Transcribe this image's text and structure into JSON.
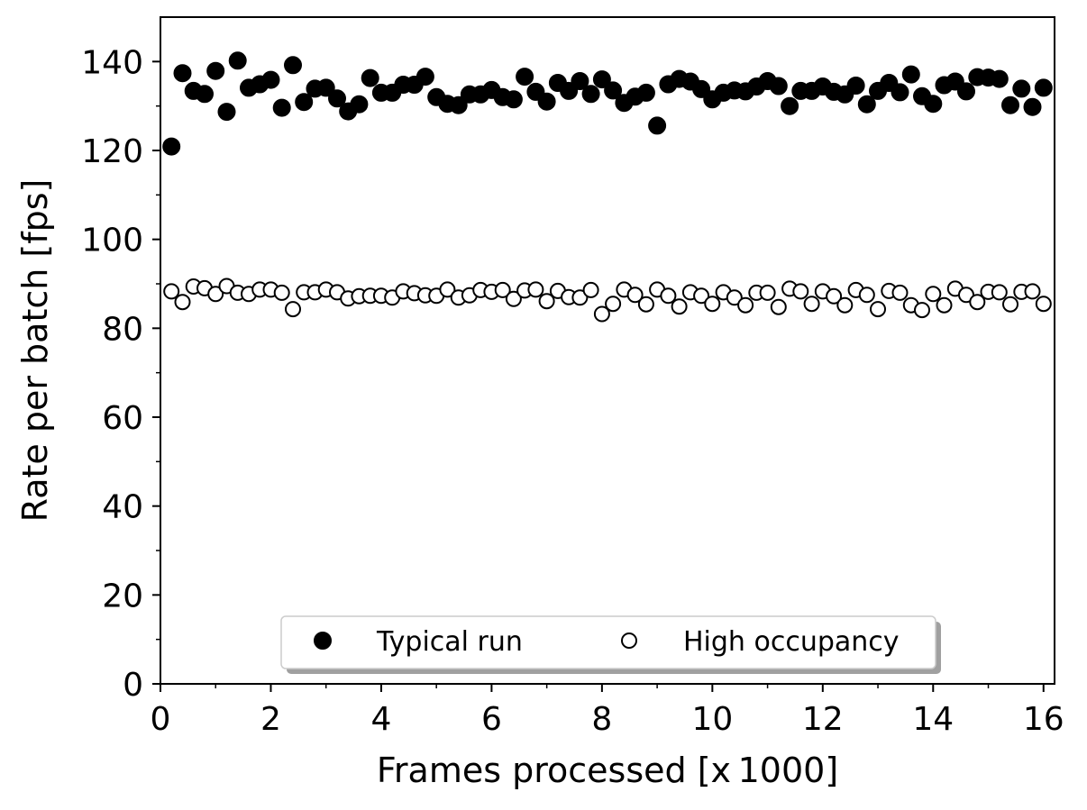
{
  "chart_data": {
    "type": "scatter",
    "title": "",
    "xlabel": "Frames processed [x 1000]",
    "ylabel": "Rate per batch [fps]",
    "xlim": [
      0,
      16.2
    ],
    "ylim": [
      0,
      150
    ],
    "x_ticks": [
      "0",
      "2",
      "4",
      "6",
      "8",
      "10",
      "12",
      "14",
      "16"
    ],
    "y_ticks": [
      "0",
      "20",
      "40",
      "60",
      "80",
      "100",
      "120",
      "140"
    ],
    "grid": false,
    "legend": {
      "placement": "lower-center",
      "columns": 2
    },
    "series": [
      {
        "name": "Typical run",
        "marker": "filled-circle",
        "color": "#000000",
        "x": [
          0.2,
          0.4,
          0.6,
          0.8,
          1.0,
          1.2,
          1.4,
          1.6,
          1.8,
          2.0,
          2.2,
          2.4,
          2.6,
          2.8,
          3.0,
          3.2,
          3.4,
          3.6,
          3.8,
          4.0,
          4.2,
          4.4,
          4.6,
          4.8,
          5.0,
          5.2,
          5.4,
          5.6,
          5.8,
          6.0,
          6.2,
          6.4,
          6.6,
          6.8,
          7.0,
          7.2,
          7.4,
          7.6,
          7.8,
          8.0,
          8.2,
          8.4,
          8.6,
          8.8,
          9.0,
          9.2,
          9.4,
          9.6,
          9.8,
          10.0,
          10.2,
          10.4,
          10.6,
          10.8,
          11.0,
          11.2,
          11.4,
          11.6,
          11.8,
          12.0,
          12.2,
          12.4,
          12.6,
          12.8,
          13.0,
          13.2,
          13.4,
          13.6,
          13.8,
          14.0,
          14.2,
          14.4,
          14.6,
          14.8,
          15.0,
          15.2,
          15.4,
          15.6,
          15.8,
          16.0
        ],
        "y": [
          120.9,
          137.4,
          133.4,
          132.7,
          137.9,
          128.7,
          140.2,
          134.1,
          134.9,
          135.9,
          129.6,
          139.2,
          130.9,
          133.9,
          134.1,
          131.7,
          128.8,
          130.4,
          136.3,
          133.0,
          133.0,
          134.8,
          134.8,
          136.6,
          132.0,
          130.5,
          130.2,
          132.6,
          132.6,
          133.6,
          132.0,
          131.5,
          136.6,
          133.2,
          131.0,
          135.2,
          133.4,
          135.6,
          132.7,
          136.0,
          133.5,
          130.7,
          132.1,
          133.0,
          125.6,
          134.9,
          136.1,
          135.5,
          133.8,
          131.5,
          133.0,
          133.5,
          133.3,
          134.4,
          135.6,
          134.5,
          130.0,
          133.4,
          133.4,
          134.4,
          133.2,
          132.6,
          134.6,
          130.4,
          133.4,
          135.2,
          133.1,
          137.1,
          132.2,
          130.5,
          134.7,
          135.5,
          133.3,
          136.5,
          136.4,
          136.1,
          130.2,
          133.9,
          129.8,
          134.1
        ]
      },
      {
        "name": "High occupancy",
        "marker": "open-circle",
        "color": "#000000",
        "x": [
          0.2,
          0.4,
          0.6,
          0.8,
          1.0,
          1.2,
          1.4,
          1.6,
          1.8,
          2.0,
          2.2,
          2.4,
          2.6,
          2.8,
          3.0,
          3.2,
          3.4,
          3.6,
          3.8,
          4.0,
          4.2,
          4.4,
          4.6,
          4.8,
          5.0,
          5.2,
          5.4,
          5.6,
          5.8,
          6.0,
          6.2,
          6.4,
          6.6,
          6.8,
          7.0,
          7.2,
          7.4,
          7.6,
          7.8,
          8.0,
          8.2,
          8.4,
          8.6,
          8.8,
          9.0,
          9.2,
          9.4,
          9.6,
          9.8,
          10.0,
          10.2,
          10.4,
          10.6,
          10.8,
          11.0,
          11.2,
          11.4,
          11.6,
          11.8,
          12.0,
          12.2,
          12.4,
          12.6,
          12.8,
          13.0,
          13.2,
          13.4,
          13.6,
          13.8,
          14.0,
          14.2,
          14.4,
          14.6,
          14.8,
          15.0,
          15.2,
          15.4,
          15.6,
          15.8,
          16.0
        ],
        "y": [
          88.3,
          85.9,
          89.4,
          89.0,
          87.7,
          89.5,
          88.0,
          87.7,
          88.7,
          88.7,
          88.0,
          84.3,
          88.1,
          88.1,
          88.7,
          88.1,
          86.7,
          87.2,
          87.3,
          87.3,
          86.9,
          88.3,
          87.9,
          87.4,
          87.3,
          88.7,
          86.9,
          87.4,
          88.6,
          88.2,
          88.6,
          86.6,
          88.5,
          88.7,
          86.1,
          88.4,
          87.0,
          86.9,
          88.6,
          83.2,
          85.5,
          88.7,
          87.5,
          85.4,
          88.7,
          87.3,
          84.9,
          88.1,
          87.3,
          85.5,
          88.1,
          86.9,
          85.2,
          88.0,
          88.0,
          84.8,
          88.9,
          88.3,
          85.5,
          88.3,
          87.2,
          85.2,
          88.6,
          87.5,
          84.3,
          88.4,
          88.0,
          85.2,
          84.1,
          87.7,
          85.2,
          88.9,
          87.5,
          85.9,
          88.2,
          88.1,
          85.4,
          88.2,
          88.3,
          85.5
        ]
      }
    ]
  }
}
